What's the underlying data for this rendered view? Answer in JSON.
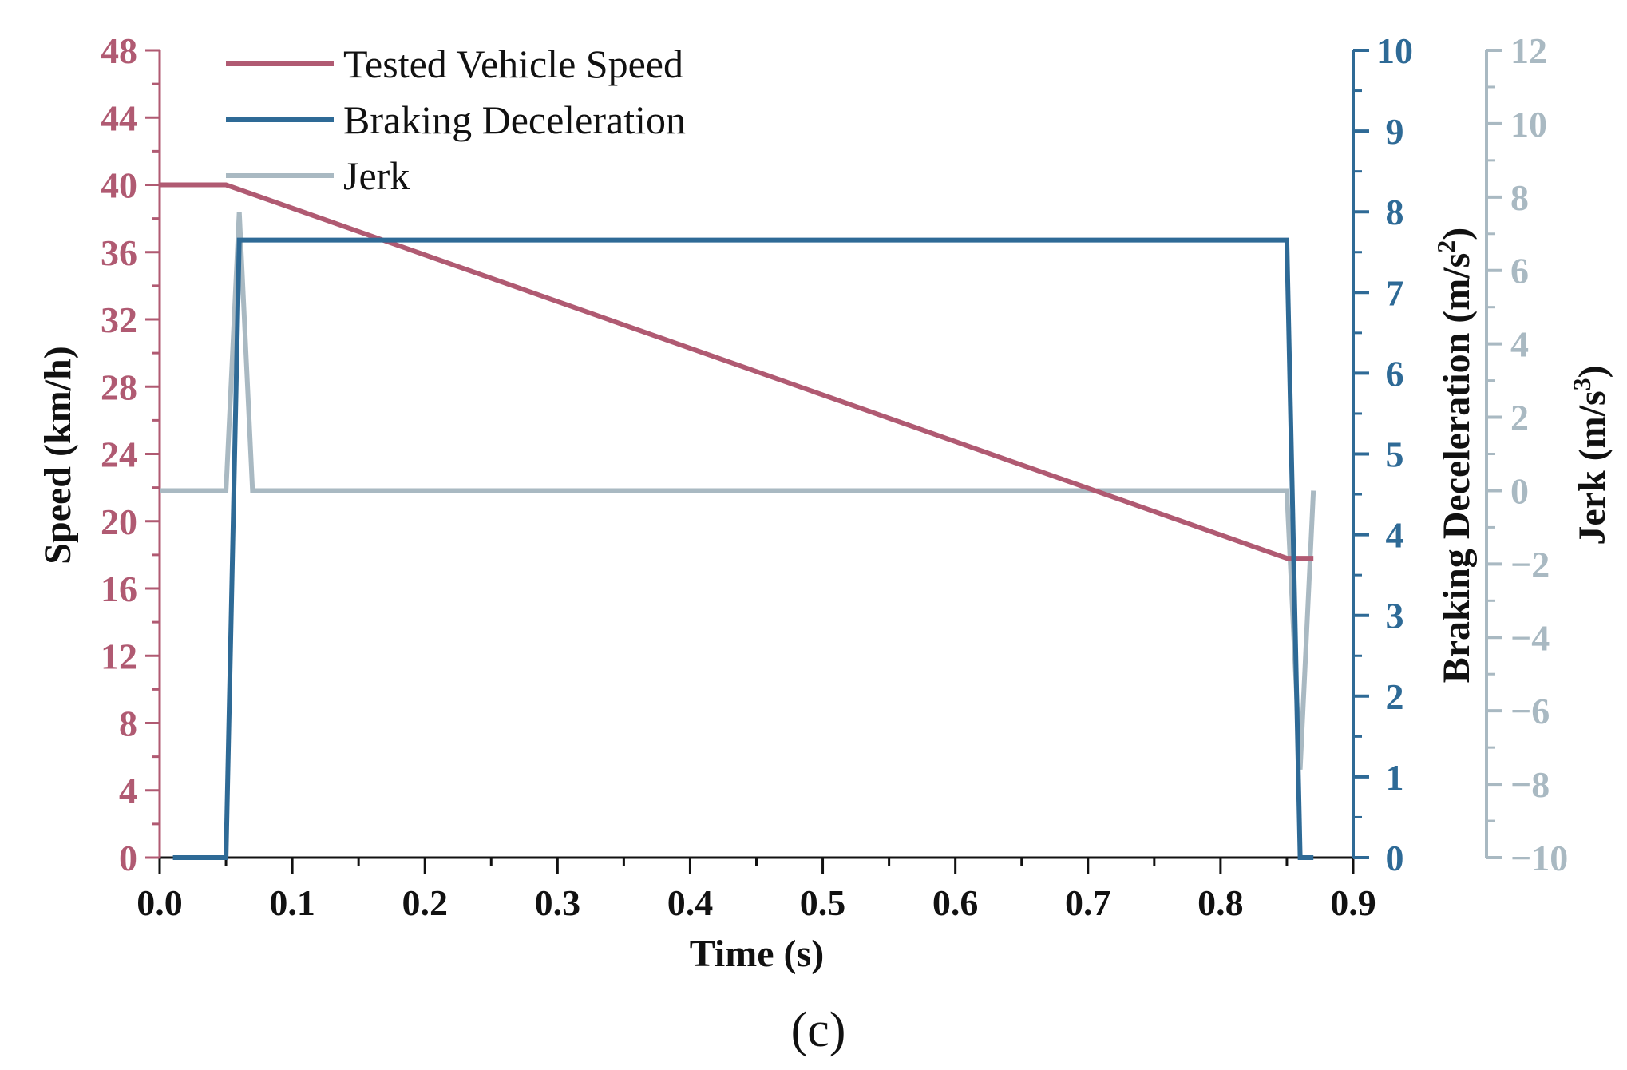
{
  "chart_data": {
    "type": "line",
    "caption": "(c)",
    "xlabel": "Time (s)",
    "xlim": [
      0.0,
      0.9
    ],
    "x_ticks": [
      "0.0",
      "0.1",
      "0.2",
      "0.3",
      "0.4",
      "0.5",
      "0.6",
      "0.7",
      "0.8",
      "0.9"
    ],
    "axes": {
      "speed": {
        "label": "Speed (km/h)",
        "ylim": [
          0,
          48
        ],
        "ticks": [
          "0",
          "4",
          "8",
          "12",
          "16",
          "20",
          "24",
          "28",
          "32",
          "36",
          "40",
          "44",
          "48"
        ],
        "color": "#b05a72"
      },
      "decel": {
        "label_main": "Braking Deceleration (m/s",
        "label_sup": "2",
        "label_end": ")",
        "ylim": [
          0,
          10
        ],
        "ticks": [
          "0",
          "1",
          "2",
          "3",
          "4",
          "5",
          "6",
          "7",
          "8",
          "9",
          "10"
        ],
        "color": "#2e6a96"
      },
      "jerk": {
        "label_main": "Jerk (m/s",
        "label_sup": "3",
        "label_end": ")",
        "ylim": [
          -10,
          12
        ],
        "ticks": [
          "−10",
          "−8",
          "−6",
          "−4",
          "−2",
          "0",
          "2",
          "4",
          "6",
          "8",
          "10",
          "12"
        ],
        "color": "#a9b9c2"
      }
    },
    "series": [
      {
        "name": "Tested Vehicle Speed",
        "axis": "speed",
        "color": "#b05a72",
        "x": [
          0.0,
          0.05,
          0.85,
          0.87
        ],
        "y": [
          40,
          40,
          17.8,
          17.8
        ]
      },
      {
        "name": "Braking Deceleration",
        "axis": "decel",
        "color": "#2e6a96",
        "x": [
          0.01,
          0.05,
          0.06,
          0.85,
          0.86,
          0.87
        ],
        "y": [
          0,
          0,
          7.65,
          7.65,
          0,
          0
        ]
      },
      {
        "name": "Jerk",
        "axis": "jerk",
        "color": "#a9b9c2",
        "x": [
          0.0,
          0.05,
          0.06,
          0.07,
          0.85,
          0.86,
          0.87
        ],
        "y": [
          0,
          0,
          7.6,
          0,
          0,
          -7.6,
          0
        ]
      }
    ],
    "legend": [
      "Tested Vehicle Speed",
      "Braking Deceleration",
      "Jerk"
    ],
    "legend_position": "top-left"
  }
}
